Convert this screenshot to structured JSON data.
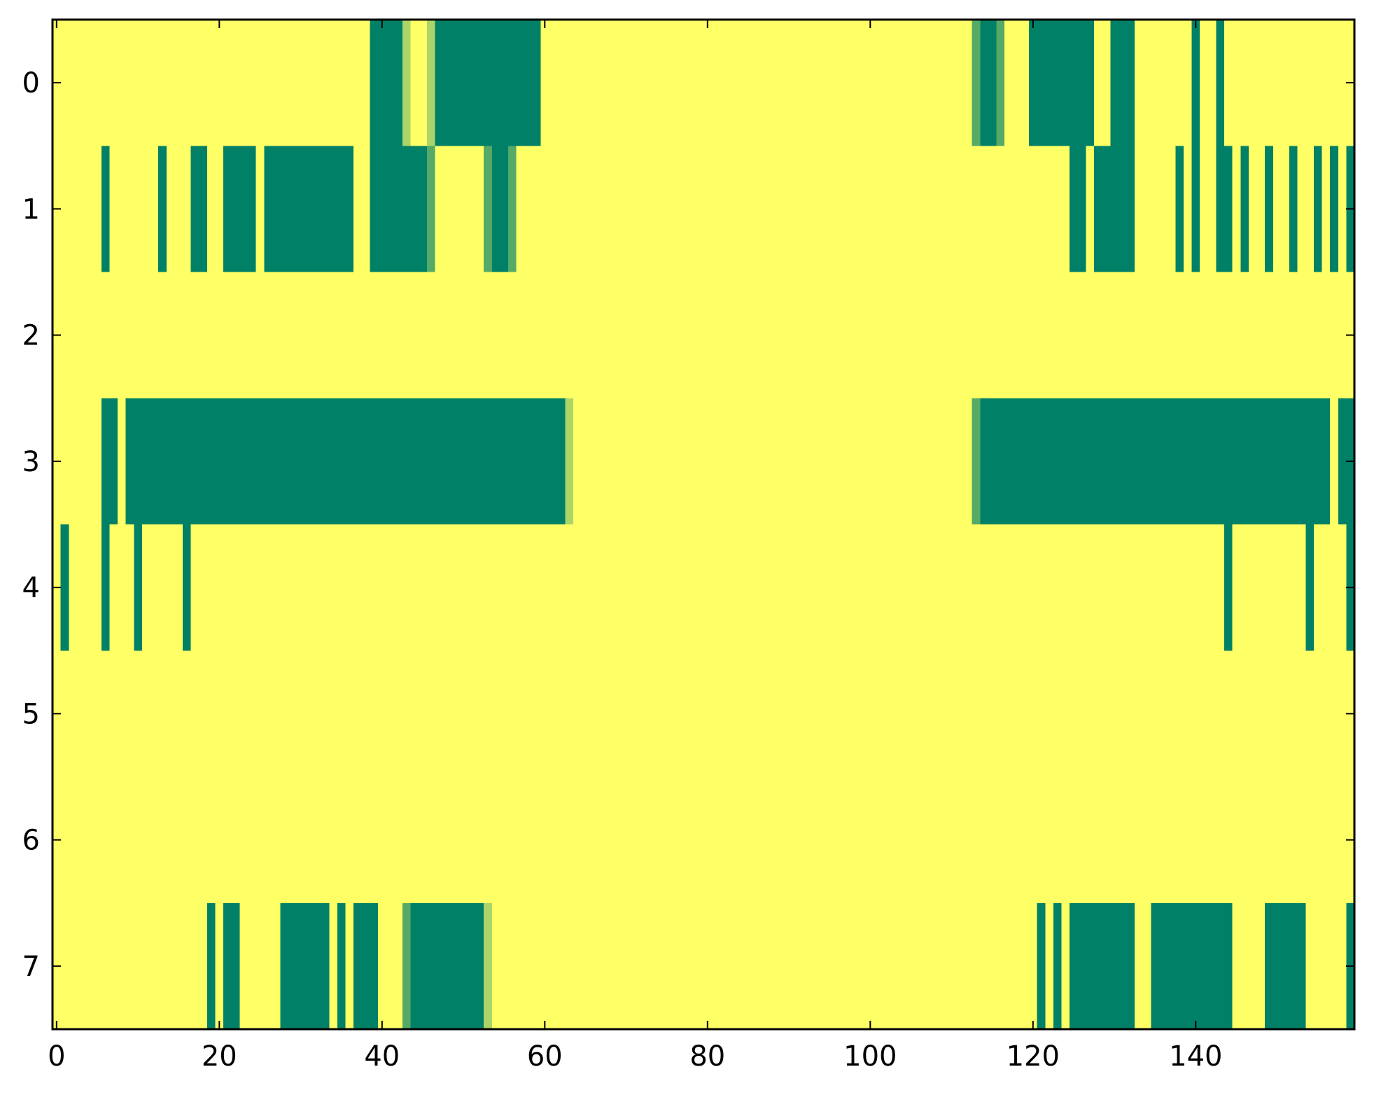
{
  "chart_data": {
    "type": "heatmap",
    "title": "",
    "xlabel": "",
    "ylabel": "",
    "xlim": [
      -0.5,
      159.5
    ],
    "ylim": [
      7.5,
      -0.5
    ],
    "x_ticks": [
      "0",
      "20",
      "40",
      "60",
      "80",
      "100",
      "120",
      "140"
    ],
    "x_tick_values": [
      0,
      20,
      40,
      60,
      80,
      100,
      120,
      140
    ],
    "y_ticks": [
      "0",
      "1",
      "2",
      "3",
      "4",
      "5",
      "6",
      "7"
    ],
    "y_tick_values": [
      0,
      1,
      2,
      3,
      4,
      5,
      6,
      7
    ],
    "grid": false,
    "legend": "none",
    "n_rows": 8,
    "n_cols": 160,
    "background_value": 1.0,
    "colormap": "summer",
    "colors": {
      "low": "#008066",
      "high": "#ffff66",
      "mid": "#55aa66",
      "mid_high": "#aad466"
    },
    "cells": [
      {
        "row": 0,
        "segments": [
          {
            "start": 39,
            "end": 42,
            "value": 0.0
          },
          {
            "start": 43,
            "end": 43,
            "value": 0.67
          },
          {
            "start": 46,
            "end": 46,
            "value": 0.67
          },
          {
            "start": 47,
            "end": 59,
            "value": 0.0
          },
          {
            "start": 113,
            "end": 113,
            "value": 0.33
          },
          {
            "start": 114,
            "end": 115,
            "value": 0.0
          },
          {
            "start": 116,
            "end": 116,
            "value": 0.33
          },
          {
            "start": 120,
            "end": 127,
            "value": 0.0
          },
          {
            "start": 130,
            "end": 132,
            "value": 0.0
          },
          {
            "start": 140,
            "end": 140,
            "value": 0.0
          },
          {
            "start": 143,
            "end": 143,
            "value": 0.0
          }
        ]
      },
      {
        "row": 1,
        "segments": [
          {
            "start": 6,
            "end": 6,
            "value": 0.0
          },
          {
            "start": 13,
            "end": 13,
            "value": 0.0
          },
          {
            "start": 17,
            "end": 18,
            "value": 0.0
          },
          {
            "start": 21,
            "end": 24,
            "value": 0.0
          },
          {
            "start": 26,
            "end": 36,
            "value": 0.0
          },
          {
            "start": 39,
            "end": 45,
            "value": 0.0
          },
          {
            "start": 46,
            "end": 46,
            "value": 0.33
          },
          {
            "start": 53,
            "end": 53,
            "value": 0.33
          },
          {
            "start": 54,
            "end": 55,
            "value": 0.0
          },
          {
            "start": 56,
            "end": 56,
            "value": 0.33
          },
          {
            "start": 125,
            "end": 126,
            "value": 0.0
          },
          {
            "start": 128,
            "end": 132,
            "value": 0.0
          },
          {
            "start": 138,
            "end": 138,
            "value": 0.0
          },
          {
            "start": 140,
            "end": 140,
            "value": 0.0
          },
          {
            "start": 143,
            "end": 144,
            "value": 0.0
          },
          {
            "start": 146,
            "end": 146,
            "value": 0.0
          },
          {
            "start": 149,
            "end": 149,
            "value": 0.0
          },
          {
            "start": 152,
            "end": 152,
            "value": 0.0
          },
          {
            "start": 155,
            "end": 155,
            "value": 0.0
          },
          {
            "start": 157,
            "end": 157,
            "value": 0.0
          },
          {
            "start": 159,
            "end": 159,
            "value": 0.0
          }
        ]
      },
      {
        "row": 2,
        "segments": []
      },
      {
        "row": 3,
        "segments": [
          {
            "start": 6,
            "end": 7,
            "value": 0.0
          },
          {
            "start": 9,
            "end": 62,
            "value": 0.0
          },
          {
            "start": 63,
            "end": 63,
            "value": 0.67
          },
          {
            "start": 113,
            "end": 113,
            "value": 0.33
          },
          {
            "start": 114,
            "end": 156,
            "value": 0.0
          },
          {
            "start": 158,
            "end": 159,
            "value": 0.0
          }
        ]
      },
      {
        "row": 4,
        "segments": [
          {
            "start": 1,
            "end": 1,
            "value": 0.0
          },
          {
            "start": 6,
            "end": 6,
            "value": 0.0
          },
          {
            "start": 10,
            "end": 10,
            "value": 0.0
          },
          {
            "start": 16,
            "end": 16,
            "value": 0.0
          },
          {
            "start": 144,
            "end": 144,
            "value": 0.0
          },
          {
            "start": 154,
            "end": 154,
            "value": 0.0
          },
          {
            "start": 159,
            "end": 159,
            "value": 0.0
          }
        ]
      },
      {
        "row": 5,
        "segments": []
      },
      {
        "row": 6,
        "segments": []
      },
      {
        "row": 7,
        "segments": [
          {
            "start": 19,
            "end": 19,
            "value": 0.0
          },
          {
            "start": 21,
            "end": 22,
            "value": 0.0
          },
          {
            "start": 28,
            "end": 33,
            "value": 0.0
          },
          {
            "start": 35,
            "end": 35,
            "value": 0.0
          },
          {
            "start": 37,
            "end": 39,
            "value": 0.0
          },
          {
            "start": 43,
            "end": 43,
            "value": 0.33
          },
          {
            "start": 44,
            "end": 52,
            "value": 0.0
          },
          {
            "start": 53,
            "end": 53,
            "value": 0.67
          },
          {
            "start": 121,
            "end": 121,
            "value": 0.0
          },
          {
            "start": 123,
            "end": 123,
            "value": 0.0
          },
          {
            "start": 125,
            "end": 132,
            "value": 0.0
          },
          {
            "start": 135,
            "end": 144,
            "value": 0.0
          },
          {
            "start": 149,
            "end": 153,
            "value": 0.0
          },
          {
            "start": 159,
            "end": 159,
            "value": 0.0
          }
        ]
      }
    ]
  }
}
